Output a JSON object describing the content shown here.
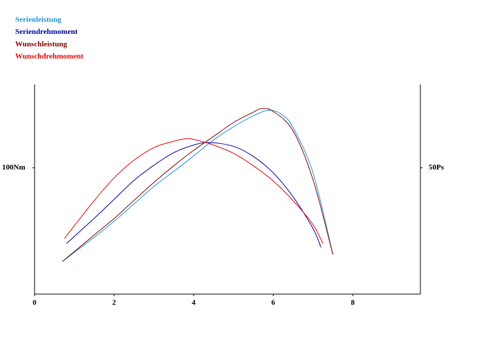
{
  "chart_data": {
    "type": "line",
    "xlim": [
      0,
      9.7
    ],
    "xticks": [
      0,
      2,
      4,
      6,
      8
    ],
    "ylim": [
      0,
      166
    ],
    "yticks": [
      {
        "value": 100,
        "label": "100Nm"
      }
    ],
    "y2lim": [
      0,
      83
    ],
    "y2ticks": [
      {
        "value": 50,
        "label": "50Ps"
      }
    ],
    "series": [
      {
        "name": "Serienleistung",
        "color": "#1e90d8",
        "axis": "y2",
        "x": [
          0.7,
          1.5,
          2,
          2.5,
          3,
          3.5,
          4,
          4.5,
          5,
          5.5,
          5.9,
          6.2,
          6.5,
          7,
          7.5
        ],
        "values": [
          12.9,
          22.5,
          28.8,
          35.7,
          42.6,
          48.6,
          54.7,
          61,
          66.2,
          70.6,
          72.8,
          71.2,
          65.9,
          48,
          15.7
        ]
      },
      {
        "name": "Seriendrehmoment",
        "color": "#0000a0",
        "x": [
          0.8,
          1.5,
          2,
          2.5,
          3,
          3.5,
          4,
          4.4,
          5,
          5.5,
          6,
          6.5,
          7,
          7.2
        ],
        "values": [
          40,
          60,
          75,
          90,
          102,
          112,
          118,
          120,
          117,
          109,
          96,
          77,
          52,
          37
        ]
      },
      {
        "name": "Wunschleistung",
        "color": "#800000",
        "axis": "y2",
        "x": [
          0.7,
          1.5,
          2,
          2.5,
          3,
          3.5,
          4,
          4.5,
          5,
          5.5,
          5.7,
          6,
          6.5,
          7,
          7.5
        ],
        "values": [
          12.9,
          23.4,
          29.9,
          37.1,
          44.2,
          50.8,
          56.9,
          62.4,
          67.9,
          72,
          73.4,
          72.3,
          64.6,
          45.3,
          15.7
        ]
      },
      {
        "name": "Wunschdrehmoment",
        "color": "#e00000",
        "x": [
          0.75,
          1.5,
          2,
          2.5,
          3,
          3.5,
          3.8,
          4,
          4.5,
          5,
          5.5,
          6,
          6.5,
          7,
          7.25
        ],
        "values": [
          44,
          74,
          92,
          106,
          116,
          121,
          123,
          122.5,
          118,
          111.5,
          101.6,
          89.6,
          74,
          55,
          40
        ]
      }
    ]
  }
}
